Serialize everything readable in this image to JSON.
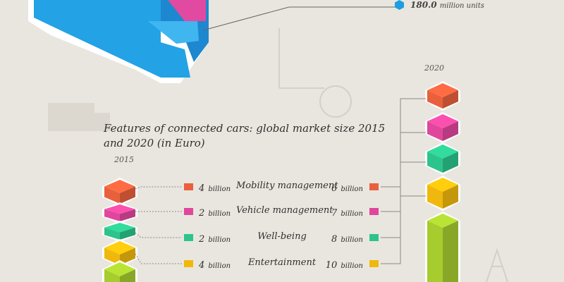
{
  "chart_data": {
    "type": "bar",
    "title": "Features of connected cars: global market size 2015 and 2020 (in Euro)",
    "unit": "billion",
    "categories": [
      "Mobility management",
      "Vehicle management",
      "Well-being",
      "Entertainment"
    ],
    "series": [
      {
        "name": "2015",
        "values": [
          4,
          2,
          2,
          4
        ]
      },
      {
        "name": "2020",
        "values": [
          6,
          7,
          8,
          10
        ]
      }
    ],
    "colors": [
      "#e8603c",
      "#e0479c",
      "#2cc48c",
      "#f0b80c"
    ],
    "extra_color": "#a6cc2e"
  },
  "top_annotation": {
    "value": "180.0",
    "unit": "million units",
    "icon": "hexagon-icon",
    "color": "#1e9ee0"
  }
}
